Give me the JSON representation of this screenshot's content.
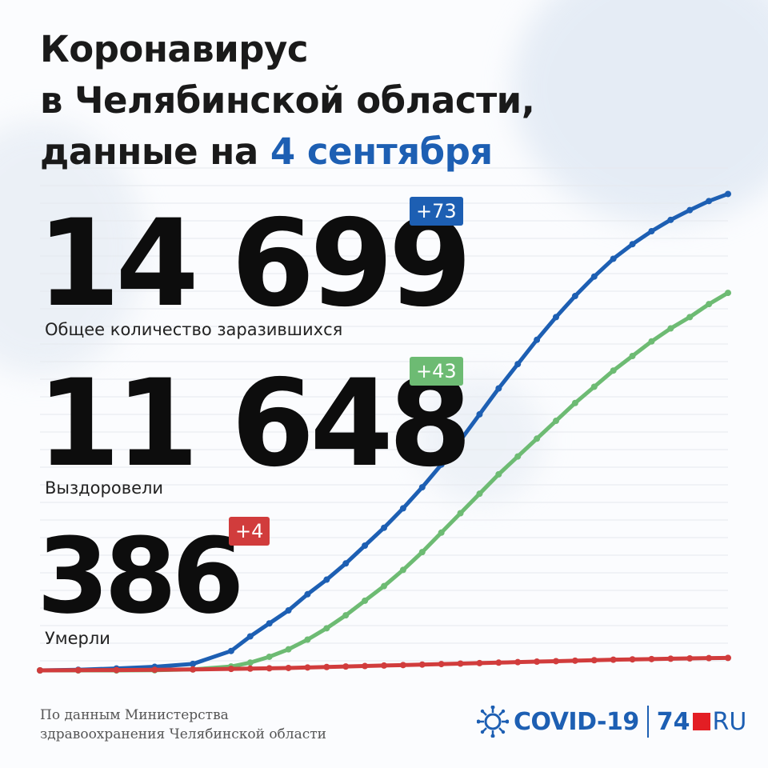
{
  "title": {
    "line1": "Коронавирус",
    "line2": "в Челябинской области,",
    "line3_prefix": "данные на ",
    "line3_date": "4 сентября"
  },
  "stats": {
    "infected": {
      "value": "14 699",
      "delta": "+73",
      "label": "Общее количество заразившихся"
    },
    "recovered": {
      "value": "11 648",
      "delta": "+43",
      "label": "Выздоровели"
    },
    "deaths": {
      "value": "386",
      "delta": "+4",
      "label": "Умерли"
    }
  },
  "footer": {
    "line1": "По данным Министерства",
    "line2": "здравоохранения Челябинской области"
  },
  "logo": {
    "covid": "COVID-19",
    "n74": "74",
    "ru": "RU"
  },
  "colors": {
    "infected": "#1d5fb3",
    "recovered": "#6dbb73",
    "deaths": "#d13c3c"
  },
  "chart_data": {
    "type": "line",
    "grid": true,
    "ylim": [
      0,
      15500
    ],
    "x": [
      0,
      10,
      20,
      30,
      40,
      50,
      55,
      60,
      65,
      70,
      75,
      80,
      85,
      90,
      95,
      100,
      105,
      110,
      115,
      120,
      125,
      130,
      135,
      140,
      145,
      150,
      155,
      160,
      165,
      170,
      175,
      180
    ],
    "series": [
      {
        "key": "infected",
        "values": [
          0,
          20,
          60,
          110,
          200,
          600,
          1050,
          1450,
          1850,
          2350,
          2800,
          3300,
          3850,
          4400,
          5000,
          5650,
          6350,
          7100,
          7900,
          8700,
          9450,
          10200,
          10900,
          11550,
          12150,
          12700,
          13150,
          13550,
          13900,
          14200,
          14480,
          14699
        ]
      },
      {
        "key": "recovered",
        "values": [
          0,
          0,
          0,
          5,
          30,
          120,
          240,
          420,
          650,
          950,
          1300,
          1700,
          2150,
          2600,
          3100,
          3650,
          4250,
          4850,
          5450,
          6050,
          6600,
          7150,
          7700,
          8250,
          8750,
          9250,
          9700,
          10150,
          10550,
          10900,
          11300,
          11648
        ]
      },
      {
        "key": "deaths",
        "values": [
          0,
          5,
          10,
          20,
          30,
          45,
          55,
          65,
          75,
          90,
          105,
          120,
          135,
          150,
          165,
          180,
          195,
          210,
          225,
          240,
          255,
          270,
          285,
          300,
          315,
          330,
          340,
          350,
          360,
          370,
          378,
          386
        ]
      }
    ]
  }
}
